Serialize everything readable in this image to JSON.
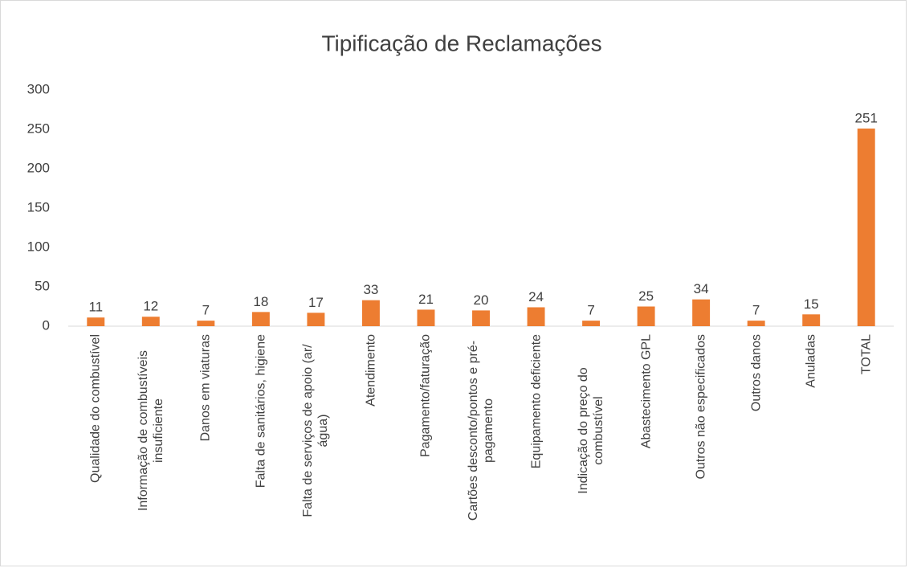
{
  "chart_data": {
    "type": "bar",
    "title": "Tipificação de Reclamações",
    "categories": [
      "Qualidade do combustível",
      "Informação de combustíveis insuficiente",
      "Danos em viaturas",
      "Falta de sanitários, higiene",
      "Falta de serviços de apoio (ar/água)",
      "Atendimento",
      "Pagamento/faturação",
      "Cartões desconto/pontos e pré-pagamento",
      "Equipamento deficiente",
      "Indicação do preço do combustível",
      "Abastecimento GPL",
      "Outros não especificados",
      "Outros danos",
      "Anuladas",
      "TOTAL"
    ],
    "values": [
      11,
      12,
      7,
      18,
      17,
      33,
      21,
      20,
      24,
      7,
      25,
      34,
      7,
      15,
      251
    ],
    "color": "#ed7d31",
    "ylim": [
      0,
      300
    ],
    "yticks": [
      0,
      50,
      100,
      150,
      200,
      250,
      300
    ],
    "grid": false
  }
}
